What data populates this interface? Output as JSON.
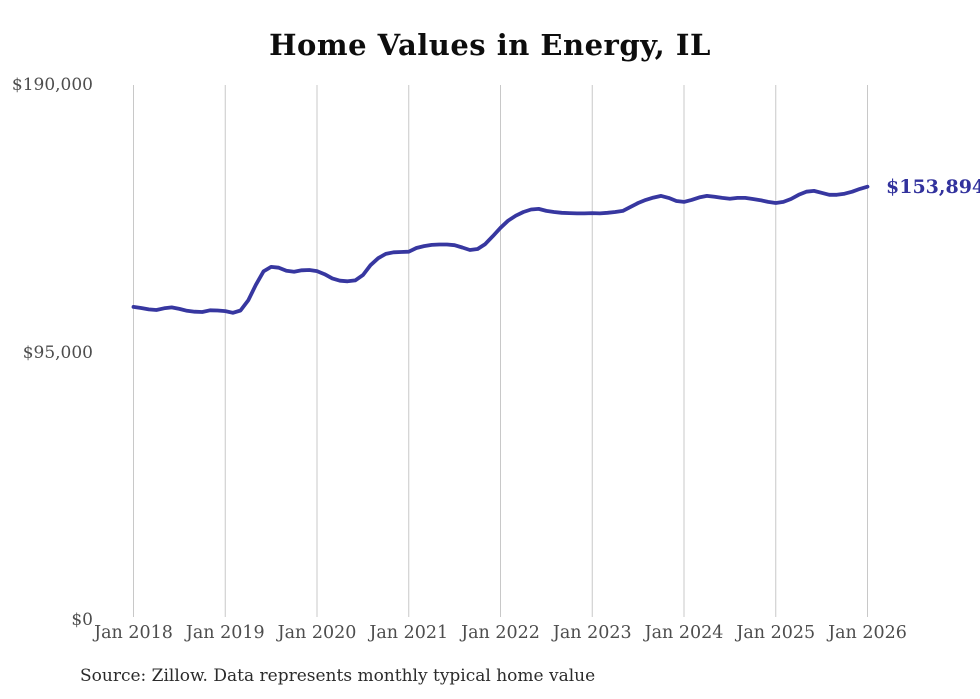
{
  "page": {
    "title": "Home Values in Energy, IL",
    "source_note": "Source: Zillow. Data represents monthly typical home value"
  },
  "chart_data": {
    "type": "line",
    "title": "Home Values in Energy, IL",
    "x_start": "Jan 2018",
    "x_end": "Jan 2026",
    "x_interval": "monthly",
    "x_tick_labels": [
      "Jan 2018",
      "Jan 2019",
      "Jan 2020",
      "Jan 2021",
      "Jan 2022",
      "Jan 2023",
      "Jan 2024",
      "Jan 2025",
      "Jan 2026"
    ],
    "y_ticks": [
      {
        "label": "$0",
        "value": 0
      },
      {
        "label": "$95,000",
        "value": 95000
      },
      {
        "label": "$190,000",
        "value": 190000
      }
    ],
    "ylim": [
      0,
      190000
    ],
    "grid": "vertical-only",
    "legend": "none",
    "end_label": "$153,894",
    "latest_value": 153894,
    "line_color": "#3737a0",
    "end_label_color": "#32329d",
    "grid_color": "#c8c8c8",
    "series": [
      {
        "name": "Monthly typical home value",
        "values": [
          111200,
          110800,
          110300,
          110100,
          110700,
          111000,
          110500,
          109800,
          109500,
          109400,
          110000,
          109900,
          109700,
          109100,
          109900,
          113500,
          119000,
          123800,
          125400,
          125100,
          124000,
          123700,
          124200,
          124300,
          123900,
          122800,
          121300,
          120500,
          120300,
          120600,
          122500,
          126000,
          128500,
          130000,
          130600,
          130700,
          130800,
          132100,
          132800,
          133200,
          133350,
          133350,
          133100,
          132300,
          131400,
          131750,
          133500,
          136350,
          139300,
          141800,
          143600,
          144900,
          145800,
          146000,
          145300,
          144900,
          144600,
          144500,
          144400,
          144400,
          144500,
          144400,
          144600,
          144900,
          145300,
          146700,
          148100,
          149200,
          150000,
          150600,
          149900,
          148800,
          148500,
          149200,
          150100,
          150600,
          150300,
          149900,
          149600,
          149900,
          149900,
          149500,
          149100,
          148500,
          148100,
          148500,
          149500,
          151000,
          152100,
          152400,
          151700,
          151000,
          151000,
          151400,
          152100,
          153100,
          153894
        ]
      }
    ]
  }
}
